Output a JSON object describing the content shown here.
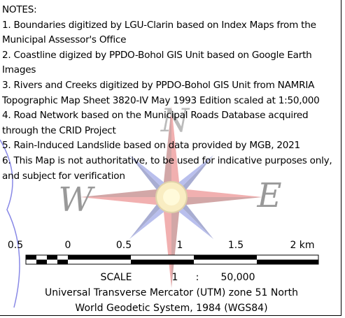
{
  "notes": {
    "title": "NOTES:",
    "items": [
      "1. Boundaries digitized by LGU-Clarin based on Index Maps from the Municipal Assessor's Office",
      "2. Coastline digized by PPDO-Bohol GIS Unit based on Google Earth Images",
      "3. Rivers and Creeks digitized by PPDO-Bohol GIS Unit from NAMRIA Topographic Map Sheet 3820-IV May 1993 Edition scaled at 1:50,000",
      "4. Road Network based on the Municipal Roads Database acquired through the CRID Project",
      "5. Rain-Induced Landslide based on data provided by MGB, 2021",
      "6. This Map is not authoritative, to be used for indicative purposes only, and subject for verification"
    ]
  },
  "compass": {
    "north": "N",
    "west": "W",
    "east": "E"
  },
  "scale_bar": {
    "labels": [
      "0.5",
      "0",
      "0.5",
      "1",
      "1.5",
      "2 km"
    ]
  },
  "scale": {
    "label": "SCALE",
    "numerator": "1",
    "separator": ":",
    "denominator": "50,000"
  },
  "projection": [
    "Universal Transverse Mercator (UTM) zone 51 North",
    "World Geodetic System, 1984 (WGS84)"
  ]
}
